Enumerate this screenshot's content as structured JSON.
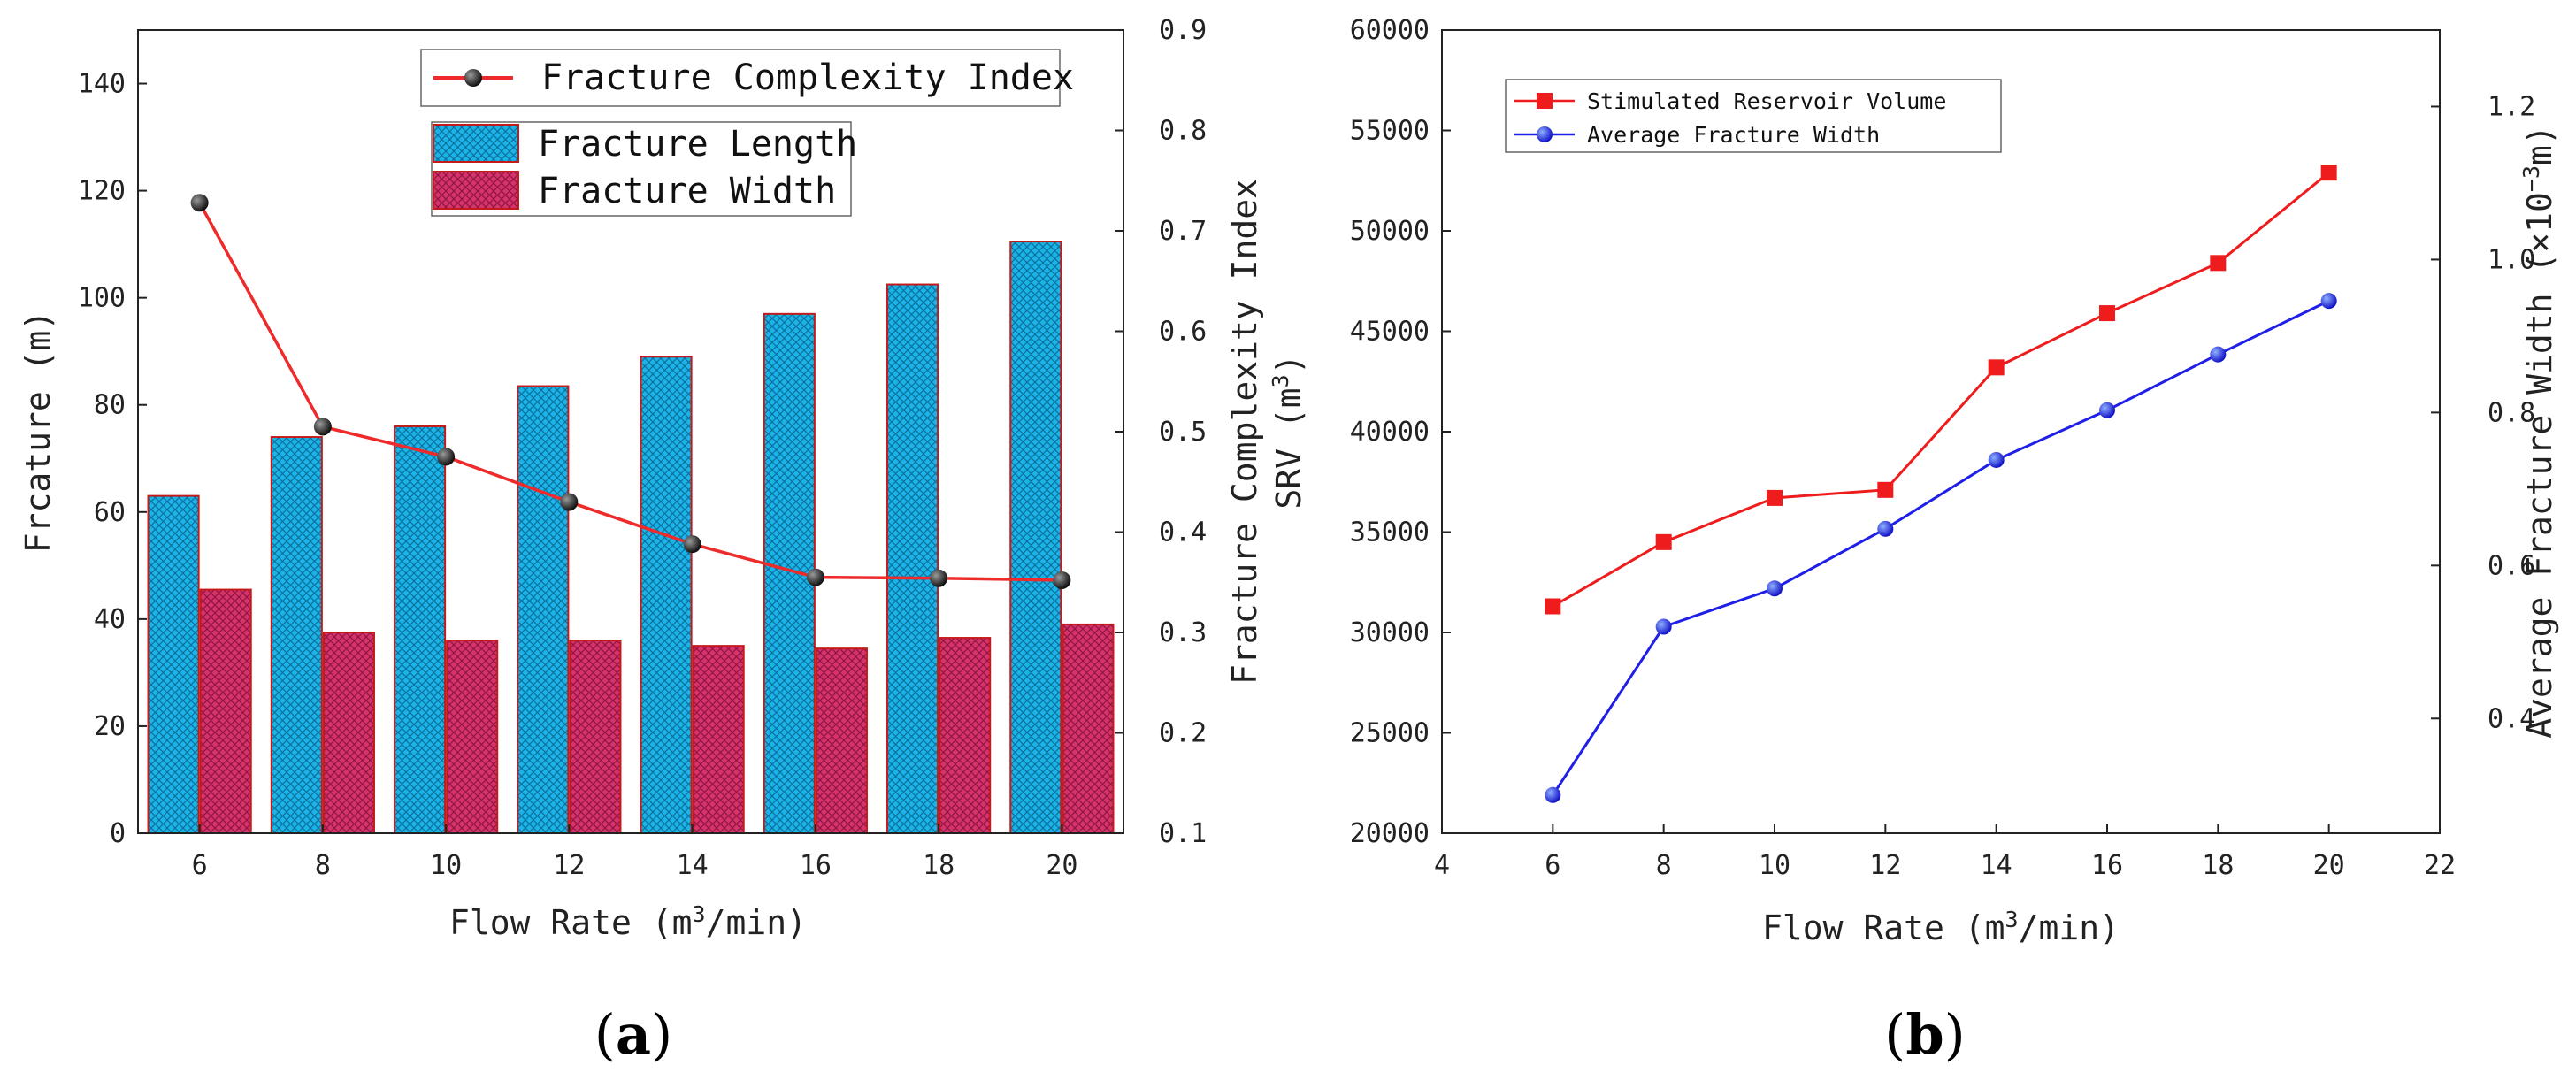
{
  "chart_data": [
    {
      "panel": "a",
      "type": "bar",
      "caption_open": "(",
      "caption_letter": "a",
      "caption_close": ")",
      "categories": [
        "6",
        "8",
        "10",
        "12",
        "14",
        "16",
        "18",
        "20"
      ],
      "xlabel_main": "Flow Rate (m",
      "xlabel_sup": "3",
      "xlabel_tail": "/min)",
      "ylabel": "Frcature (m)",
      "ylim": [
        0,
        150
      ],
      "yticks": [
        0,
        20,
        40,
        60,
        80,
        100,
        120,
        140
      ],
      "y2label": "Fracture Complexity Index",
      "y2lim": [
        0.1,
        0.9
      ],
      "y2ticks": [
        "0.1",
        "0.2",
        "0.3",
        "0.4",
        "0.5",
        "0.6",
        "0.7",
        "0.8",
        "0.9"
      ],
      "series": [
        {
          "name": "Fracture Length",
          "kind": "bar",
          "axis": "left",
          "color": "#1ab4e8",
          "values": [
            63,
            74,
            76,
            83.5,
            89,
            97,
            102.5,
            110.5
          ]
        },
        {
          "name": "Fracture Width",
          "kind": "bar",
          "axis": "left",
          "color": "#d7336b",
          "values": [
            45.5,
            37.5,
            36,
            36,
            35,
            34.5,
            36.5,
            39
          ]
        },
        {
          "name": "Fracture Complexity Index",
          "kind": "line",
          "axis": "right",
          "color": "#ee2a2a",
          "values": [
            0.728,
            0.505,
            0.475,
            0.43,
            0.388,
            0.355,
            0.354,
            0.352
          ]
        }
      ]
    },
    {
      "panel": "b",
      "type": "line",
      "caption_open": "(",
      "caption_letter": "b",
      "caption_close": ")",
      "x": [
        6,
        8,
        10,
        12,
        14,
        16,
        18,
        20
      ],
      "xlim": [
        4,
        22
      ],
      "xticks": [
        "4",
        "6",
        "8",
        "10",
        "12",
        "14",
        "16",
        "18",
        "20",
        "22"
      ],
      "xlabel_main": "Flow Rate (m",
      "xlabel_sup": "3",
      "xlabel_tail": "/min)",
      "ylabel_main": "SRV (m",
      "ylabel_sup": "3",
      "ylabel_tail": ")",
      "ylim": [
        20000,
        60000
      ],
      "yticks": [
        "20000",
        "25000",
        "30000",
        "35000",
        "40000",
        "45000",
        "50000",
        "55000",
        "60000"
      ],
      "y2label_main": "Average Fracture Width (×10",
      "y2label_sup": "−3",
      "y2label_tail": "m)",
      "y2lim": [
        0.25,
        1.3
      ],
      "y2ticks": [
        "0.4",
        "0.6",
        "0.8",
        "1.0",
        "1.2"
      ],
      "series": [
        {
          "name": "Stimulated Reservoir Volume",
          "axis": "left",
          "marker": "square",
          "color": "#ee1c1c",
          "values": [
            31300,
            34500,
            36700,
            37100,
            43200,
            45900,
            48400,
            52900
          ]
        },
        {
          "name": "Average Fracture Width",
          "axis": "right",
          "marker": "circle",
          "color": "#1f1fe8",
          "values": [
            0.3,
            0.52,
            0.57,
            0.648,
            0.738,
            0.803,
            0.876,
            0.946
          ]
        }
      ]
    }
  ]
}
